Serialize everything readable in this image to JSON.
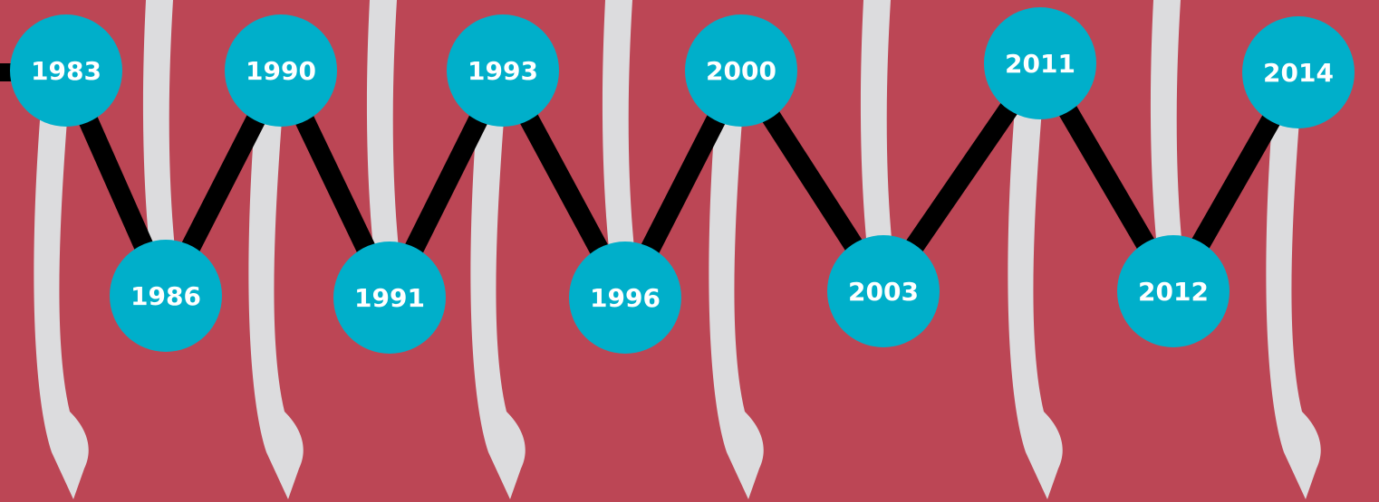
{
  "nodes": [
    {
      "label": "1983"
    },
    {
      "label": "1986"
    },
    {
      "label": "1990"
    },
    {
      "label": "1991"
    },
    {
      "label": "1993"
    },
    {
      "label": "1996"
    },
    {
      "label": "2000"
    },
    {
      "label": "2003"
    },
    {
      "label": "2011"
    },
    {
      "label": "2012"
    },
    {
      "label": "2014"
    }
  ]
}
